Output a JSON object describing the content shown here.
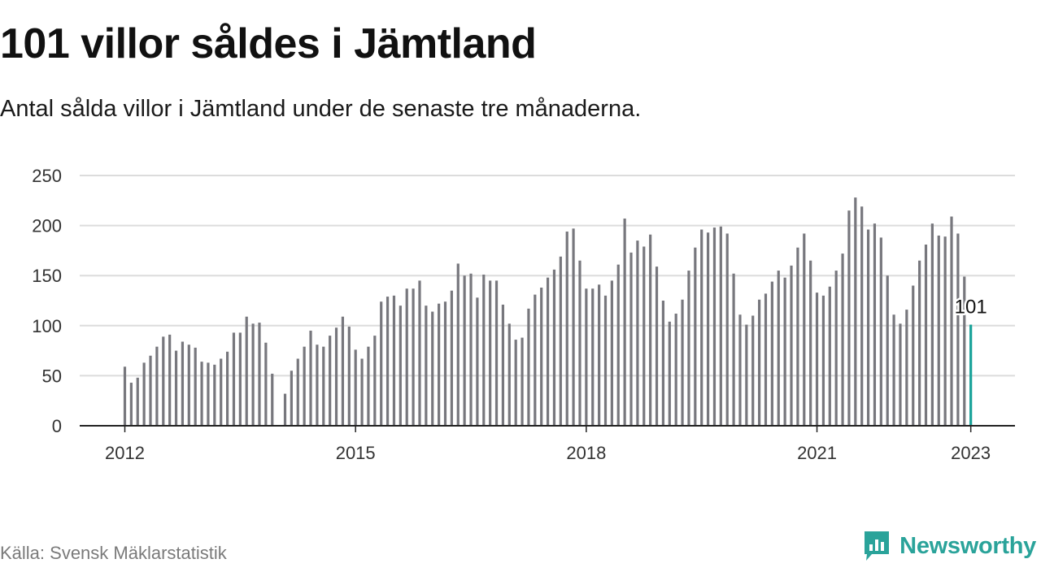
{
  "header": {
    "title": "101 villor såldes i Jämtland",
    "subtitle": "Antal sålda villor i Jämtland under de senaste tre månaderna."
  },
  "footer": {
    "source": "Källa: Svensk Mäklarstatistik",
    "brand": "Newsworthy"
  },
  "colors": {
    "bar": "#77777d",
    "highlight": "#1aa39a",
    "grid": "#dcdcdc",
    "axis": "#222222",
    "brand": "#2aa39a"
  },
  "icons": {
    "brand_logo": "newsworthy-logo-icon"
  },
  "chart_data": {
    "type": "bar",
    "title": "101 villor såldes i Jämtland",
    "subtitle": "Antal sålda villor i Jämtland under de senaste tre månaderna.",
    "xlabel": "",
    "ylabel": "",
    "ylim": [
      0,
      250
    ],
    "yticks": [
      0,
      50,
      100,
      150,
      200,
      250
    ],
    "xticks": [
      2012,
      2015,
      2018,
      2021,
      2023
    ],
    "grid": true,
    "legend": "none",
    "start": "2012-01",
    "end": "2023-01",
    "highlight_label": "101",
    "values": [
      59,
      43,
      48,
      63,
      70,
      79,
      89,
      91,
      75,
      84,
      81,
      78,
      64,
      63,
      61,
      67,
      74,
      93,
      93,
      109,
      102,
      103,
      83,
      52,
      null,
      32,
      55,
      67,
      79,
      95,
      81,
      79,
      90,
      98,
      109,
      99,
      76,
      67,
      79,
      90,
      124,
      129,
      130,
      120,
      137,
      137,
      145,
      120,
      114,
      122,
      124,
      135,
      162,
      150,
      152,
      128,
      151,
      145,
      145,
      121,
      102,
      86,
      88,
      117,
      131,
      138,
      148,
      156,
      169,
      194,
      197,
      165,
      137,
      137,
      141,
      130,
      145,
      161,
      207,
      173,
      185,
      179,
      191,
      159,
      125,
      104,
      112,
      126,
      155,
      178,
      196,
      193,
      198,
      199,
      192,
      152,
      111,
      101,
      110,
      126,
      132,
      144,
      155,
      148,
      160,
      178,
      192,
      165,
      133,
      130,
      139,
      155,
      172,
      215,
      228,
      219,
      196,
      202,
      188,
      150,
      111,
      102,
      116,
      140,
      165,
      181,
      202,
      190,
      189,
      209,
      192,
      149,
      101
    ]
  }
}
